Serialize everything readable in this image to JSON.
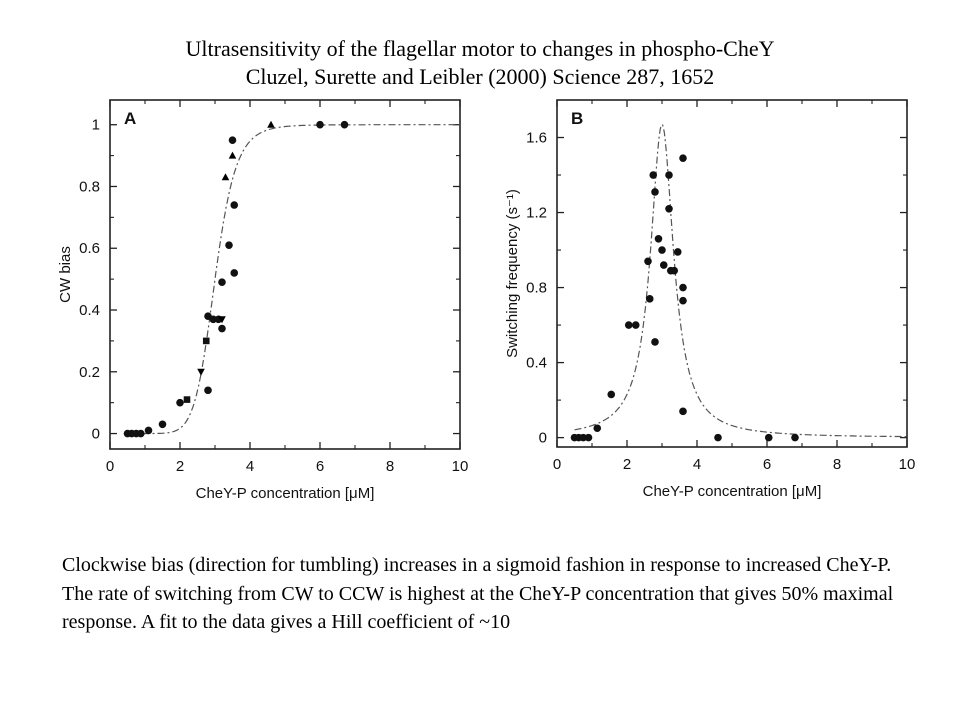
{
  "header": {
    "title": "Ultrasensitivity of the flagellar motor to changes in phospho-CheY",
    "citation": "Cluzel, Surette and Leibler (2000) Science 287, 1652"
  },
  "caption": "Clockwise bias (direction for tumbling) increases in a sigmoid fashion in response to increased CheY-P.  The rate of switching from CW to CCW is highest at the CheY-P concentration that gives 50% maximal response.  A fit to the data gives a Hill coefficient of ~10",
  "chart_data": [
    {
      "type": "scatter",
      "panel_label": "A",
      "xlabel": "CheY-P  concentration  [μM]",
      "ylabel": "CW bias",
      "xlim": [
        0,
        10
      ],
      "ylim": [
        -0.05,
        1.08
      ],
      "x_ticks": [
        0,
        2,
        4,
        6,
        8,
        10
      ],
      "y_ticks": [
        0,
        0.2,
        0.4,
        0.6,
        0.8,
        1
      ],
      "grid": false,
      "series": [
        {
          "marker": "circle",
          "points": [
            [
              0.5,
              0
            ],
            [
              0.62,
              0
            ],
            [
              0.75,
              0
            ],
            [
              0.88,
              0
            ],
            [
              1.1,
              0.01
            ],
            [
              1.5,
              0.03
            ],
            [
              2.0,
              0.1
            ],
            [
              2.8,
              0.14
            ],
            [
              2.8,
              0.38
            ],
            [
              2.95,
              0.37
            ],
            [
              3.1,
              0.37
            ],
            [
              3.2,
              0.34
            ],
            [
              3.2,
              0.49
            ],
            [
              3.4,
              0.61
            ],
            [
              3.5,
              0.95
            ],
            [
              3.55,
              0.74
            ],
            [
              3.55,
              0.52
            ],
            [
              6.0,
              1.0
            ],
            [
              6.7,
              1.0
            ]
          ]
        },
        {
          "marker": "square",
          "points": [
            [
              2.2,
              0.11
            ],
            [
              2.75,
              0.3
            ]
          ]
        },
        {
          "marker": "triangle-up",
          "points": [
            [
              3.3,
              0.83
            ],
            [
              3.5,
              0.9
            ],
            [
              4.6,
              1.0
            ]
          ]
        },
        {
          "marker": "triangle-down",
          "points": [
            [
              2.6,
              0.2
            ],
            [
              3.2,
              0.37
            ]
          ]
        }
      ],
      "fit": {
        "style": "dash-dot",
        "model": "Hill",
        "K": 3.0,
        "n": 10,
        "max": 1.0
      }
    },
    {
      "type": "scatter",
      "panel_label": "B",
      "xlabel": "CheY-P  concentration  [μM]",
      "ylabel": "Switching  frequency  (s⁻¹)",
      "xlim": [
        0,
        10
      ],
      "ylim": [
        -0.05,
        1.8
      ],
      "x_ticks": [
        0,
        2,
        4,
        6,
        8,
        10
      ],
      "y_ticks": [
        0,
        0.4,
        0.8,
        1.2,
        1.6
      ],
      "grid": false,
      "series": [
        {
          "marker": "circle",
          "points": [
            [
              0.5,
              0
            ],
            [
              0.62,
              0
            ],
            [
              0.75,
              0
            ],
            [
              0.9,
              0
            ],
            [
              1.15,
              0.05
            ],
            [
              1.55,
              0.23
            ],
            [
              2.05,
              0.6
            ],
            [
              2.25,
              0.6
            ],
            [
              2.6,
              0.94
            ],
            [
              2.65,
              0.74
            ],
            [
              2.75,
              1.4
            ],
            [
              2.8,
              1.31
            ],
            [
              2.8,
              0.51
            ],
            [
              2.9,
              1.06
            ],
            [
              3.0,
              1.0
            ],
            [
              3.05,
              0.92
            ],
            [
              3.2,
              1.4
            ],
            [
              3.2,
              1.22
            ],
            [
              3.25,
              0.89
            ],
            [
              3.35,
              0.89
            ],
            [
              3.45,
              0.99
            ],
            [
              3.6,
              1.49
            ],
            [
              3.6,
              0.8
            ],
            [
              3.6,
              0.73
            ],
            [
              3.6,
              0.14
            ],
            [
              4.6,
              0
            ],
            [
              6.05,
              0
            ],
            [
              6.8,
              0
            ]
          ]
        }
      ],
      "fit": {
        "style": "dash-dot",
        "model": "Lorentzian",
        "center": 3.0,
        "peak": 1.67,
        "halfwidth": 0.4
      }
    }
  ]
}
